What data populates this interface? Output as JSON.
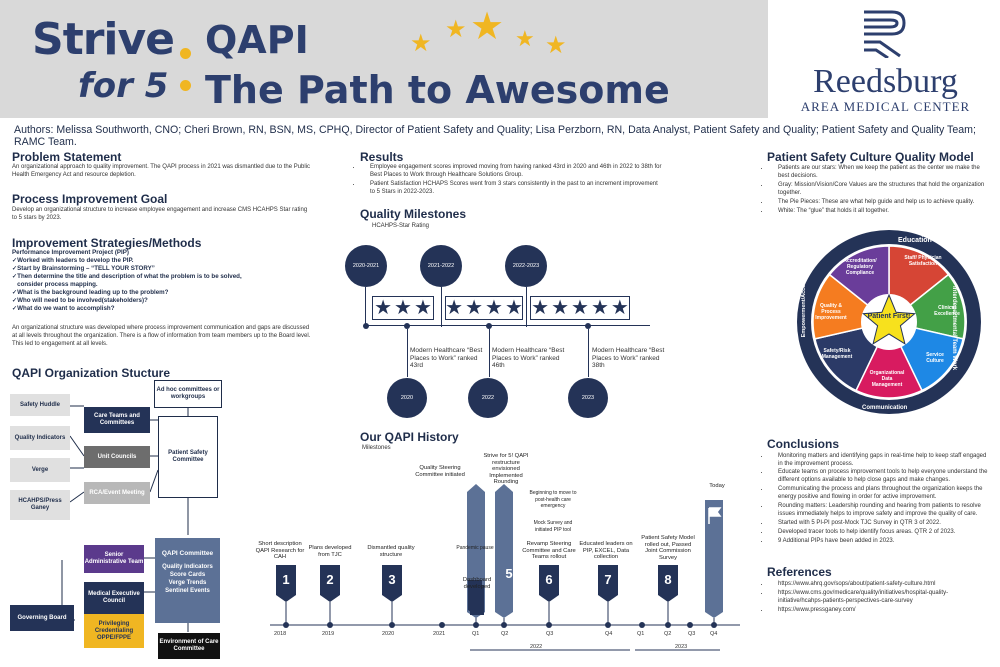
{
  "header": {
    "strive": "Strive",
    "for5": "for 5",
    "qapi": "QAPI",
    "path": "The Path to Awesome"
  },
  "logo": {
    "name": "Reedsburg",
    "sub": "AREA MEDICAL CENTER"
  },
  "authors": "Authors: Melissa Southworth, CNO; Cheri Brown, RN, BSN, MS, CPHQ, Director of Patient Safety and Quality; Lisa Perzborn, RN, Data Analyst, Patient Safety and Quality; Patient Safety and Quality Team; RAMC Team.",
  "problem": {
    "title": "Problem Statement",
    "text": "An organizational approach to quality improvement. The QAPI process in 2021 was dismantled due to the Public Health Emergency Act and resource depletion."
  },
  "goal": {
    "title": "Process Improvement Goal",
    "text": "Develop an organizational structure to increase employee engagement and increase CMS HCAHPS Star rating to 5 stars by 2023."
  },
  "strategies": {
    "title": "Improvement Strategies/Methods",
    "sub": "Performance Improvement Project (PIP)",
    "items": [
      "✓Worked with leaders to develop the PIP.",
      "✓Start by Brainstorming – “TELL YOUR STORY”",
      "✓Then determine the title and description of what the problem is to be solved,",
      "   consider process mapping.",
      "✓What is the background leading up to the problem?",
      "✓Who will need to be involved(stakeholders)?",
      "✓What do we want to accomplish?"
    ],
    "text": "An organizational structure was developed where process improvement communication and gaps are discussed at all levels throughout the organization. There is a flow of information from team members up to the Board level. This led to engagement at all levels."
  },
  "org": {
    "title": "QAPI Organization Stucture",
    "left": [
      "Safety Huddle",
      "Quality Indicators",
      "Verge",
      "HCAHPS/Press Ganey"
    ],
    "mid": [
      "Care Teams and Committees",
      "Unit Councils",
      "RCA/Event Meeting"
    ],
    "adhoc": "Ad hoc committees or workgroups",
    "psc": "Patient Safety Committee",
    "senior": "Senior Administrative Team",
    "mec": "Medical Executive Council",
    "priv": "Privileging Credentialing OPPE/FPPE",
    "board": "Governing Board",
    "qapi_title": "QAPI Committee",
    "qapi_items": [
      "Quality Indicators",
      "Score Cards",
      "Verge Trends",
      "Sentinel Events"
    ],
    "env": "Environment of Care Committee"
  },
  "results": {
    "title": "Results",
    "items": [
      "Employee engagement scores improved moving from having ranked 43rd in 2020 and 46th in 2022 to 38th for Best Places to Work through Healthcare Solutions Group.",
      "Patient Satisfaction HCHAPS Scores went from 3 stars consistently in the past to an increment improvement to 5 Stars in 2022-2023."
    ]
  },
  "milestones": {
    "title": "Quality Milestones",
    "sub": "HCAHPS-Star Rating",
    "periods": [
      "2020-2021",
      "2021-2022",
      "2022-2023"
    ],
    "stars": [
      3,
      4,
      5
    ],
    "years": [
      "2020",
      "2022",
      "2023"
    ],
    "texts": [
      "Modern Healthcare “Best Places to Work” ranked 43rd",
      "Modern Healthcare “Best Places to Work” ranked 46th",
      "Modern Healthcare “Best Places to Work” ranked 38th"
    ]
  },
  "history": {
    "title": "Our QAPI History",
    "sub": "Milestones",
    "labels": [
      "Short description QAPI Research for CAH",
      "Plans developed from TJC",
      "Dismantled quality structure",
      "Quality Steering Committee initiated",
      "Dashboard developed",
      "Strive for 5! QAPI restructure envisioned Implemented Rounding",
      "Revamp Steering Committee and Care Teams rollout",
      "Educated leaders on PIP, EXCEL, Data collection",
      "Patient Safety Model rolled out, Passed Joint Commission Survey",
      "Today"
    ],
    "nums": [
      "1",
      "2",
      "3",
      "4",
      "5",
      "6",
      "7",
      "8"
    ],
    "notes": [
      "Pandemic pause",
      "Beginning to move to post-health care emergency",
      "Mock Survey and initiated PIP tool"
    ],
    "ticks": [
      "2018",
      "2019",
      "2020",
      "2021",
      "Q1",
      "Q2",
      "Q3",
      "Q4",
      "Q1",
      "Q2",
      "Q3",
      "Q4"
    ],
    "spans": [
      "2022",
      "2023"
    ]
  },
  "model": {
    "title": "Patient Safety Culture Quality Model",
    "items": [
      "Patients are our stars: When we keep the patient as the center we make the best decisions.",
      "Gray: Mission/Vision/Core Values are the structures that hold the organization together.",
      "The Pie Pieces: These are what help guide and help us to achieve quality.",
      "White: The “glue” that holds it all together."
    ],
    "ring": [
      "Mission/Vision/Core Values",
      "Education",
      "Interdepartmental Team Work",
      "Communication",
      "Physician Relationships",
      "Empowerment/Accountability"
    ],
    "slices": [
      "Staff/ Physician Satisfaction",
      "Clinical Excellence",
      "Service Culture",
      "Organizational Data Management",
      "Safety/Risk Management",
      "Quality & Process Improvement",
      "Accreditation/ Regulatory Compliance"
    ],
    "center": "Patient First!",
    "colors": [
      "#d64535",
      "#43a047",
      "#1e88e5",
      "#d81b60",
      "#2b3a67",
      "#f57c20",
      "#6a3d9a"
    ]
  },
  "conclusions": {
    "title": "Conclusions",
    "items": [
      "Monitoring matters and identifying gaps in real-time help to keep staff engaged in the improvement process.",
      "Educate teams on process improvement tools to help everyone understand the different options available to help close gaps and make changes.",
      "Communicating the process and plans throughout the organization keeps the energy positive and flowing in order for active improvement.",
      "Rounding matters: Leadership rounding and hearing from patients to resolve issues immediately helps to improve safety and improve the quality of care.",
      "Started with 5 PI-PI post-Mock TJC Survey in QTR 3 of 2022.",
      "Developed tracer tools to help identify focus areas. QTR 2 of 2023.",
      "9 Additional PIPs have been added in 2023."
    ]
  },
  "references": {
    "title": "References",
    "items": [
      "https://www.ahrq.gov/sops/about/patient-safety-culture.html",
      "https://www.cms.gov/medicare/quality/initiatives/hospital-quality-initiative/hcahps-patients-perspectives-care-survey",
      "https://www.pressganey.com/"
    ]
  }
}
